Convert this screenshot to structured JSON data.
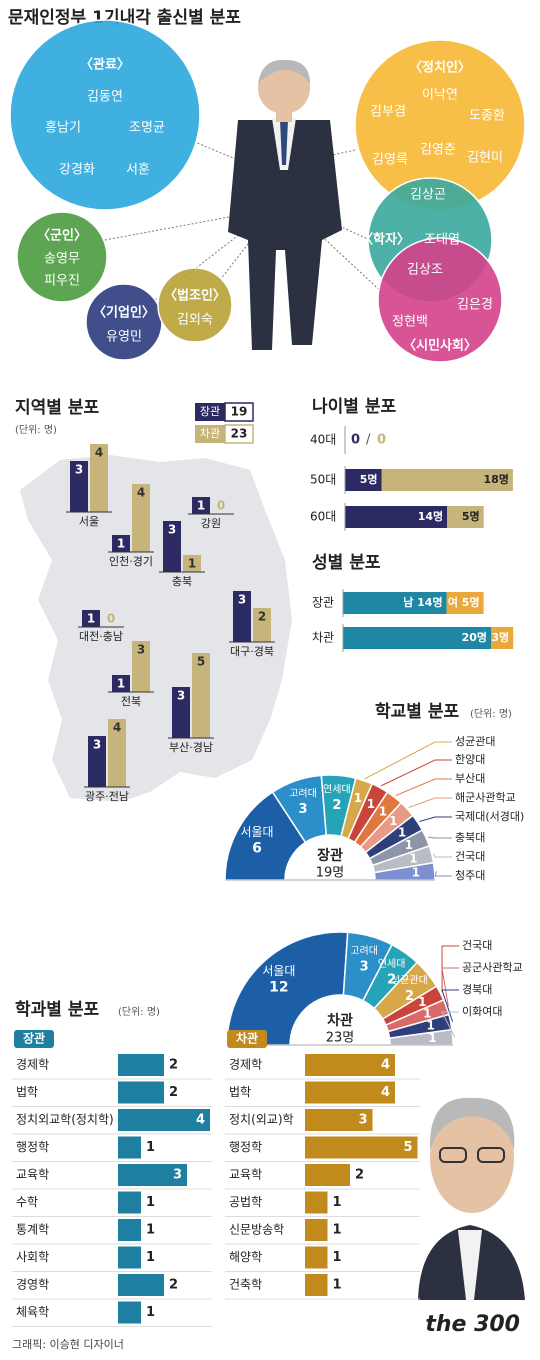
{
  "title": "문재인정부 1기내각 출신별 분포",
  "origin": {
    "groups": [
      {
        "label": "〈관료〉",
        "members": [
          "김동연",
          "홍남기",
          "조명균",
          "강경화",
          "서훈"
        ],
        "color": "#2aa7dc"
      },
      {
        "label": "〈정치인〉",
        "members": [
          "이낙연",
          "김부겸",
          "도종환",
          "김영춘",
          "김영록",
          "김현미"
        ],
        "color": "#f6b834"
      },
      {
        "label": "〈학자〉",
        "members": [
          "조대엽"
        ],
        "color": "#3aa99e"
      },
      {
        "label": "〈시민사회〉",
        "members": [
          "김은경",
          "정현백"
        ],
        "color": "#d4418b"
      },
      {
        "label": "〈군인〉",
        "members": [
          "송영무",
          "피우진"
        ],
        "color": "#4b9b3f"
      },
      {
        "label": "〈기업인〉",
        "members": [
          "유영민"
        ],
        "color": "#2b3c80"
      },
      {
        "label": "〈법조인〉",
        "members": [
          "김외숙"
        ],
        "color": "#b8a236"
      }
    ],
    "overlaps": [
      "김상곤",
      "김상조"
    ]
  },
  "chart_data": [
    {
      "type": "mapbar",
      "title": "지역별 분포",
      "unit": "(단위: 명)",
      "categories": [
        "서울",
        "인천·경기",
        "강원",
        "충북",
        "대전·충남",
        "대구·경북",
        "전북",
        "부산·경남",
        "광주·전남"
      ],
      "series": [
        {
          "name": "장관",
          "total": 19,
          "color": "#2b2a63",
          "values": [
            3,
            1,
            1,
            3,
            1,
            3,
            1,
            3,
            3
          ]
        },
        {
          "name": "차관",
          "total": 23,
          "color": "#c7b47a",
          "values": [
            4,
            4,
            0,
            1,
            0,
            2,
            3,
            5,
            4
          ]
        }
      ]
    },
    {
      "type": "stacked_hbar",
      "title": "나이별 분포",
      "categories": [
        "40대",
        "50대",
        "60대"
      ],
      "separator": "/",
      "series": [
        {
          "color": "#2b2a63",
          "values": [
            0,
            5,
            14
          ],
          "value_labels": [
            "0",
            "5명",
            "14명"
          ]
        },
        {
          "color": "#c7b47a",
          "values": [
            0,
            18,
            5
          ],
          "value_labels": [
            "0",
            "18명",
            "5명"
          ]
        }
      ]
    },
    {
      "type": "stacked_hbar",
      "title": "성별 분포",
      "categories": [
        "장관",
        "차관"
      ],
      "series": [
        {
          "color": "#1f86a3",
          "values": [
            14,
            20
          ],
          "value_labels": [
            "남 14명",
            "20명"
          ]
        },
        {
          "color": "#e8a93a",
          "values": [
            5,
            3
          ],
          "value_labels": [
            "여 5명",
            "3명"
          ]
        }
      ]
    },
    {
      "type": "half_donut",
      "title": "학교별 분포",
      "unit": "(단위: 명)",
      "center_label": "장관",
      "total_label": "19명",
      "categories": [
        "서울대",
        "고려대",
        "연세대",
        "성균관대",
        "한양대",
        "부산대",
        "해군사관학교",
        "국제대(서경대)",
        "충북대",
        "건국대",
        "청주대"
      ],
      "values": [
        6,
        3,
        2,
        1,
        1,
        1,
        1,
        1,
        1,
        1,
        1
      ],
      "colors": [
        "#1d5fa6",
        "#2b8fc9",
        "#27a3b8",
        "#d6a84a",
        "#c9453b",
        "#e0773f",
        "#e89a86",
        "#2e3f7a",
        "#8f95a8",
        "#b9bcc5",
        "#7d8fcf"
      ]
    },
    {
      "type": "half_donut",
      "center_label": "차관",
      "total_label": "23명",
      "categories": [
        "서울대",
        "고려대",
        "연세대",
        "성균관대",
        "건국대",
        "공군사관학교",
        "경북대",
        "이화여대"
      ],
      "values": [
        12,
        3,
        2,
        2,
        1,
        1,
        1,
        1
      ],
      "colors": [
        "#1d5fa6",
        "#2b8fc9",
        "#27a3b8",
        "#d6a84a",
        "#c9453b",
        "#d86a6a",
        "#2e3f7a",
        "#b9bcc5"
      ]
    },
    {
      "type": "hbar",
      "title": "학과별 분포",
      "unit": "(단위: 명)",
      "name": "장관",
      "color": "#1f7fa0",
      "categories": [
        "경제학",
        "법학",
        "정치외교학(정치학)",
        "행정학",
        "교육학",
        "수학",
        "통계학",
        "사회학",
        "경영학",
        "체육학"
      ],
      "values": [
        2,
        2,
        4,
        1,
        3,
        1,
        1,
        1,
        2,
        1
      ]
    },
    {
      "type": "hbar",
      "name": "차관",
      "color": "#c08a1d",
      "categories": [
        "경제학",
        "법학",
        "정치(외교)학",
        "행정학",
        "교육학",
        "공법학",
        "신문방송학",
        "해양학",
        "건축학"
      ],
      "values": [
        4,
        4,
        3,
        5,
        2,
        1,
        1,
        1,
        1
      ]
    }
  ],
  "footer": {
    "credit": "그래픽: 이승현 디자이너",
    "logo": "the 300"
  }
}
